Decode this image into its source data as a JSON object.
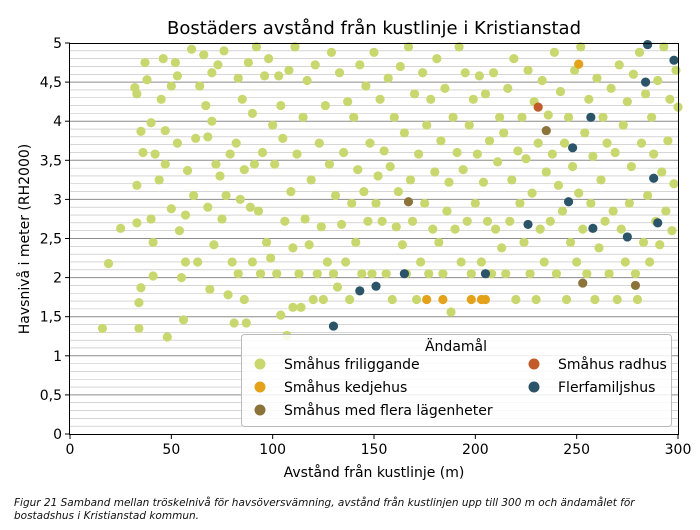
{
  "chart_data": {
    "type": "scatter",
    "title": "Bostäders avstånd från kustlinje i Kristianstad",
    "xlabel": "Avstånd från kustlinje (m)",
    "ylabel": "Havsnivå i meter (RH2000)",
    "xlim": [
      0,
      300
    ],
    "ylim": [
      0,
      5
    ],
    "xticks": [
      0,
      50,
      100,
      150,
      200,
      250,
      300
    ],
    "yticks": [
      0,
      0.5,
      1,
      1.5,
      2,
      2.5,
      3,
      3.5,
      4,
      4.5,
      5
    ],
    "xtick_labels": [
      "0",
      "50",
      "100",
      "150",
      "200",
      "250",
      "300"
    ],
    "ytick_labels": [
      "0",
      "0,5",
      "1",
      "1,5",
      "2",
      "2,5",
      "3",
      "3,5",
      "4",
      "4,5",
      "5"
    ],
    "minor_grid_step": 0.1,
    "legend_position": "bottom-right",
    "legend_title": "Ändamål",
    "series": [
      {
        "name": "Småhus friliggande",
        "color": "#c8d86e",
        "points": [
          [
            16,
            1.35
          ],
          [
            19,
            2.18
          ],
          [
            25,
            2.63
          ],
          [
            32,
            4.43
          ],
          [
            33,
            4.35
          ],
          [
            33,
            2.7
          ],
          [
            33,
            3.18
          ],
          [
            34,
            1.68
          ],
          [
            34,
            1.35
          ],
          [
            35,
            3.87
          ],
          [
            35,
            1.87
          ],
          [
            36,
            3.6
          ],
          [
            37,
            4.75
          ],
          [
            38,
            4.53
          ],
          [
            40,
            3.98
          ],
          [
            40,
            2.75
          ],
          [
            41,
            2.45
          ],
          [
            41,
            2.02
          ],
          [
            42,
            3.58
          ],
          [
            44,
            3.25
          ],
          [
            45,
            4.28
          ],
          [
            46,
            4.8
          ],
          [
            47,
            3.88
          ],
          [
            47,
            3.45
          ],
          [
            48,
            1.24
          ],
          [
            50,
            4.45
          ],
          [
            50,
            2.88
          ],
          [
            52,
            4.75
          ],
          [
            53,
            4.58
          ],
          [
            53,
            3.72
          ],
          [
            54,
            2.6
          ],
          [
            55,
            2.0
          ],
          [
            56,
            1.46
          ],
          [
            57,
            2.8
          ],
          [
            57,
            2.2
          ],
          [
            58,
            3.37
          ],
          [
            60,
            4.92
          ],
          [
            61,
            3.05
          ],
          [
            62,
            3.78
          ],
          [
            63,
            2.2
          ],
          [
            64,
            4.45
          ],
          [
            66,
            4.85
          ],
          [
            67,
            4.2
          ],
          [
            68,
            3.8
          ],
          [
            68,
            2.9
          ],
          [
            69,
            1.85
          ],
          [
            70,
            4.62
          ],
          [
            70,
            4.0
          ],
          [
            71,
            2.42
          ],
          [
            72,
            3.45
          ],
          [
            73,
            4.72
          ],
          [
            74,
            3.3
          ],
          [
            75,
            2.75
          ],
          [
            76,
            4.9
          ],
          [
            77,
            3.05
          ],
          [
            78,
            1.78
          ],
          [
            79,
            3.58
          ],
          [
            80,
            2.2
          ],
          [
            81,
            1.42
          ],
          [
            82,
            3.72
          ],
          [
            83,
            4.55
          ],
          [
            83,
            2.05
          ],
          [
            84,
            3.0
          ],
          [
            85,
            4.28
          ],
          [
            86,
            1.72
          ],
          [
            86,
            3.38
          ],
          [
            87,
            1.42
          ],
          [
            88,
            4.75
          ],
          [
            89,
            2.9
          ],
          [
            90,
            4.1
          ],
          [
            90,
            2.2
          ],
          [
            91,
            3.45
          ],
          [
            92,
            4.95
          ],
          [
            93,
            2.85
          ],
          [
            94,
            2.05
          ],
          [
            95,
            3.6
          ],
          [
            96,
            4.58
          ],
          [
            97,
            2.45
          ],
          [
            98,
            4.8
          ],
          [
            99,
            2.25
          ],
          [
            100,
            3.95
          ],
          [
            101,
            3.45
          ],
          [
            102,
            2.05
          ],
          [
            103,
            4.58
          ],
          [
            104,
            1.52
          ],
          [
            104,
            4.2
          ],
          [
            105,
            3.78
          ],
          [
            106,
            2.72
          ],
          [
            107,
            1.26
          ],
          [
            108,
            4.65
          ],
          [
            109,
            3.1
          ],
          [
            110,
            1.62
          ],
          [
            110,
            2.38
          ],
          [
            111,
            4.95
          ],
          [
            112,
            3.58
          ],
          [
            113,
            2.05
          ],
          [
            114,
            1.62
          ],
          [
            115,
            4.05
          ],
          [
            116,
            2.75
          ],
          [
            117,
            4.52
          ],
          [
            118,
            2.42
          ],
          [
            119,
            3.25
          ],
          [
            120,
            1.72
          ],
          [
            121,
            4.72
          ],
          [
            122,
            2.05
          ],
          [
            123,
            3.72
          ],
          [
            124,
            2.65
          ],
          [
            125,
            1.72
          ],
          [
            126,
            4.2
          ],
          [
            127,
            2.2
          ],
          [
            128,
            3.45
          ],
          [
            129,
            4.88
          ],
          [
            130,
            2.05
          ],
          [
            131,
            3.05
          ],
          [
            132,
            1.88
          ],
          [
            133,
            4.62
          ],
          [
            134,
            2.68
          ],
          [
            135,
            3.6
          ],
          [
            136,
            2.2
          ],
          [
            137,
            4.25
          ],
          [
            138,
            1.72
          ],
          [
            139,
            2.95
          ],
          [
            140,
            4.05
          ],
          [
            141,
            2.45
          ],
          [
            142,
            3.38
          ],
          [
            143,
            4.72
          ],
          [
            144,
            2.05
          ],
          [
            145,
            3.1
          ],
          [
            146,
            4.45
          ],
          [
            147,
            2.72
          ],
          [
            148,
            3.72
          ],
          [
            149,
            2.05
          ],
          [
            150,
            4.88
          ],
          [
            151,
            2.95
          ],
          [
            152,
            3.3
          ],
          [
            153,
            4.28
          ],
          [
            154,
            2.72
          ],
          [
            155,
            3.62
          ],
          [
            156,
            2.05
          ],
          [
            157,
            4.55
          ],
          [
            158,
            3.42
          ],
          [
            159,
            1.72
          ],
          [
            160,
            4.05
          ],
          [
            161,
            2.65
          ],
          [
            162,
            3.1
          ],
          [
            163,
            4.7
          ],
          [
            164,
            2.42
          ],
          [
            165,
            3.85
          ],
          [
            166,
            2.05
          ],
          [
            167,
            4.95
          ],
          [
            168,
            3.25
          ],
          [
            169,
            2.72
          ],
          [
            170,
            4.35
          ],
          [
            171,
            1.72
          ],
          [
            172,
            3.58
          ],
          [
            173,
            2.2
          ],
          [
            174,
            4.62
          ],
          [
            175,
            2.95
          ],
          [
            176,
            3.95
          ],
          [
            177,
            2.05
          ],
          [
            178,
            4.28
          ],
          [
            179,
            2.62
          ],
          [
            180,
            3.35
          ],
          [
            181,
            4.8
          ],
          [
            182,
            2.45
          ],
          [
            183,
            3.75
          ],
          [
            184,
            2.05
          ],
          [
            185,
            4.42
          ],
          [
            186,
            2.85
          ],
          [
            187,
            3.22
          ],
          [
            188,
            1.56
          ],
          [
            189,
            4.05
          ],
          [
            190,
            2.62
          ],
          [
            191,
            3.6
          ],
          [
            192,
            4.95
          ],
          [
            193,
            2.2
          ],
          [
            194,
            3.38
          ],
          [
            195,
            4.62
          ],
          [
            196,
            2.72
          ],
          [
            197,
            3.95
          ],
          [
            198,
            2.05
          ],
          [
            199,
            4.28
          ],
          [
            200,
            2.95
          ],
          [
            201,
            3.58
          ],
          [
            202,
            4.58
          ],
          [
            203,
            2.2
          ],
          [
            204,
            3.22
          ],
          [
            205,
            4.35
          ],
          [
            206,
            2.72
          ],
          [
            207,
            3.75
          ],
          [
            208,
            2.05
          ],
          [
            209,
            4.62
          ],
          [
            210,
            2.62
          ],
          [
            211,
            3.48
          ],
          [
            212,
            4.05
          ],
          [
            213,
            2.38
          ],
          [
            214,
            3.85
          ],
          [
            215,
            2.05
          ],
          [
            216,
            4.42
          ],
          [
            217,
            2.72
          ],
          [
            218,
            3.25
          ],
          [
            219,
            4.8
          ],
          [
            220,
            1.72
          ],
          [
            221,
            3.62
          ],
          [
            222,
            2.95
          ],
          [
            223,
            4.05
          ],
          [
            224,
            2.45
          ],
          [
            225,
            3.52
          ],
          [
            226,
            4.65
          ],
          [
            227,
            2.05
          ],
          [
            228,
            3.08
          ],
          [
            229,
            4.25
          ],
          [
            230,
            1.72
          ],
          [
            231,
            3.72
          ],
          [
            232,
            2.62
          ],
          [
            233,
            4.52
          ],
          [
            234,
            2.2
          ],
          [
            235,
            3.35
          ],
          [
            236,
            4.08
          ],
          [
            237,
            2.72
          ],
          [
            238,
            3.58
          ],
          [
            239,
            4.88
          ],
          [
            240,
            2.05
          ],
          [
            241,
            3.18
          ],
          [
            242,
            4.38
          ],
          [
            243,
            2.85
          ],
          [
            244,
            3.72
          ],
          [
            245,
            1.72
          ],
          [
            246,
            4.05
          ],
          [
            247,
            2.45
          ],
          [
            248,
            3.42
          ],
          [
            249,
            4.65
          ],
          [
            250,
            2.2
          ],
          [
            251,
            3.08
          ],
          [
            252,
            4.95
          ],
          [
            253,
            2.62
          ],
          [
            254,
            3.85
          ],
          [
            255,
            2.05
          ],
          [
            256,
            4.28
          ],
          [
            257,
            2.95
          ],
          [
            258,
            3.55
          ],
          [
            259,
            1.72
          ],
          [
            260,
            4.55
          ],
          [
            261,
            2.38
          ],
          [
            262,
            3.25
          ],
          [
            263,
            4.05
          ],
          [
            264,
            2.72
          ],
          [
            265,
            3.72
          ],
          [
            266,
            2.05
          ],
          [
            267,
            4.42
          ],
          [
            268,
            2.85
          ],
          [
            269,
            3.6
          ],
          [
            270,
            1.72
          ],
          [
            271,
            4.72
          ],
          [
            272,
            2.62
          ],
          [
            273,
            3.95
          ],
          [
            274,
            2.2
          ],
          [
            275,
            4.25
          ],
          [
            276,
            2.95
          ],
          [
            277,
            3.42
          ],
          [
            278,
            4.6
          ],
          [
            279,
            2.05
          ],
          [
            280,
            1.72
          ],
          [
            281,
            4.88
          ],
          [
            282,
            3.72
          ],
          [
            283,
            2.45
          ],
          [
            284,
            4.35
          ],
          [
            285,
            3.05
          ],
          [
            286,
            2.2
          ],
          [
            287,
            4.05
          ],
          [
            288,
            3.58
          ],
          [
            289,
            2.72
          ],
          [
            290,
            4.52
          ],
          [
            291,
            2.42
          ],
          [
            292,
            3.35
          ],
          [
            293,
            4.95
          ],
          [
            294,
            2.85
          ],
          [
            295,
            3.75
          ],
          [
            296,
            4.28
          ],
          [
            297,
            2.6
          ],
          [
            298,
            3.2
          ],
          [
            299,
            4.65
          ],
          [
            300,
            4.18
          ]
        ]
      },
      {
        "name": "Småhus kedjehus",
        "color": "#e3a21a",
        "points": [
          [
            176,
            1.72
          ],
          [
            184,
            1.72
          ],
          [
            198,
            1.72
          ],
          [
            203,
            1.72
          ],
          [
            205,
            1.72
          ],
          [
            251,
            4.73
          ]
        ]
      },
      {
        "name": "Småhus med flera lägenheter",
        "color": "#8b7339",
        "points": [
          [
            167,
            2.97
          ],
          [
            235,
            3.88
          ],
          [
            253,
            1.93
          ],
          [
            279,
            1.9
          ]
        ]
      },
      {
        "name": "Småhus radhus",
        "color": "#c15c2a",
        "points": [
          [
            231,
            4.18
          ]
        ]
      },
      {
        "name": "Flerfamiljshus",
        "color": "#2c5468",
        "points": [
          [
            130,
            1.38
          ],
          [
            143,
            1.83
          ],
          [
            151,
            1.89
          ],
          [
            165,
            2.05
          ],
          [
            205,
            2.05
          ],
          [
            226,
            2.68
          ],
          [
            246,
            2.97
          ],
          [
            248,
            3.66
          ],
          [
            257,
            4.05
          ],
          [
            258,
            2.63
          ],
          [
            275,
            2.52
          ],
          [
            284,
            4.5
          ],
          [
            285,
            4.98
          ],
          [
            288,
            3.27
          ],
          [
            290,
            2.7
          ],
          [
            298,
            4.78
          ]
        ]
      }
    ]
  }
}
